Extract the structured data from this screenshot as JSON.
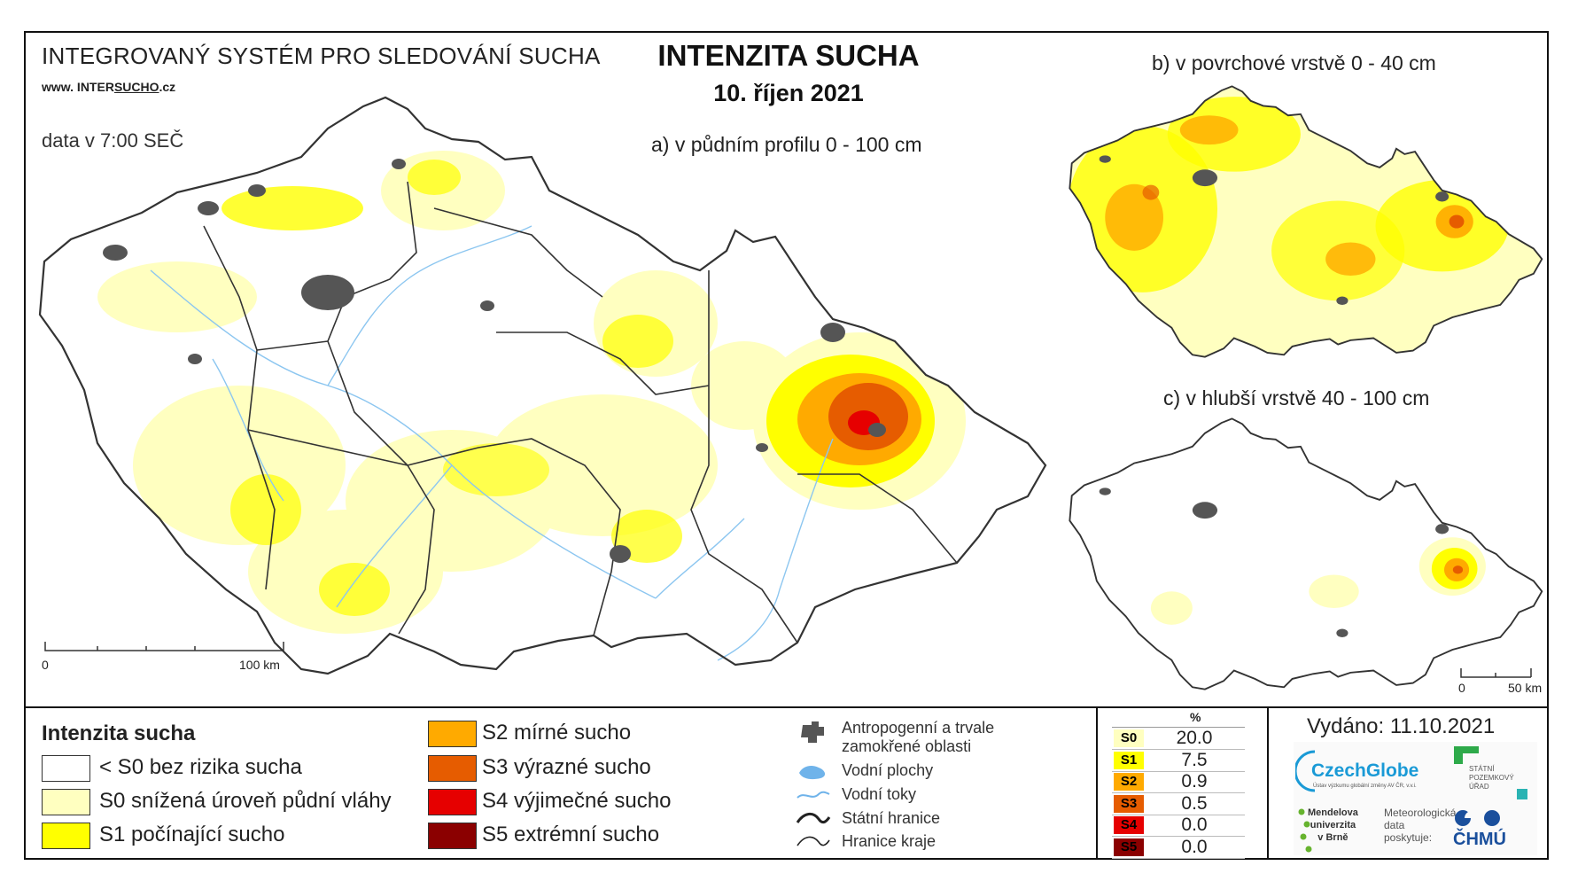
{
  "header": {
    "system_title": "INTEGROVANÝ SYSTÉM PRO SLEDOVÁNÍ SUCHA",
    "website_prefix": "www. INTER",
    "website_underlined": "SUCHO",
    "website_suffix": ".cz",
    "data_time": "data v 7:00 SEČ",
    "main_title": "INTENZITA SUCHA",
    "date": "10. říjen 2021"
  },
  "maps": {
    "a_label": "a) v půdním profilu 0 - 100 cm",
    "b_label": "b) v povrchové vrstvě 0 - 40 cm",
    "c_label": "c) v hlubší vrstvě 40 - 100 cm",
    "scale_main": {
      "zero": "0",
      "end": "100 km"
    },
    "scale_small": {
      "zero": "0",
      "end": "50 km"
    }
  },
  "legend": {
    "title": "Intenzita sucha",
    "classes": [
      {
        "label": "< S0 bez rizika sucha",
        "color": "#ffffff"
      },
      {
        "label": "S0 snížená úroveň půdní vláhy",
        "color": "#ffffc0"
      },
      {
        "label": "S1 počínající sucho",
        "color": "#ffff00"
      },
      {
        "label": "S2 mírné sucho",
        "color": "#ffaa00"
      },
      {
        "label": "S3 výrazné sucho",
        "color": "#e65c00"
      },
      {
        "label": "S4 výjimečné sucho",
        "color": "#e60000"
      },
      {
        "label": "S5 extrémní sucho",
        "color": "#8b0000"
      }
    ],
    "symbols": {
      "anthropogenic_line1": "Antropogenní a trvale",
      "anthropogenic_line2": "zamokřené oblasti",
      "water_bodies": "Vodní plochy",
      "rivers": "Vodní toky",
      "state_border": "Státní hranice",
      "region_border": "Hranice kraje"
    }
  },
  "percent_table": {
    "header": "%",
    "rows": [
      {
        "code": "S0",
        "value": "20.0",
        "color": "#ffffc0",
        "text": "#000"
      },
      {
        "code": "S1",
        "value": "7.5",
        "color": "#ffff00",
        "text": "#000"
      },
      {
        "code": "S2",
        "value": "0.9",
        "color": "#ffaa00",
        "text": "#000"
      },
      {
        "code": "S3",
        "value": "0.5",
        "color": "#e65c00",
        "text": "#000"
      },
      {
        "code": "S4",
        "value": "0.0",
        "color": "#e60000",
        "text": "#000"
      },
      {
        "code": "S5",
        "value": "0.0",
        "color": "#8b0000",
        "text": "#000"
      }
    ]
  },
  "issued": "Vydáno: 11.10.2021",
  "logos": {
    "czechglobe": "CzechGlobe",
    "czechglobe_sub": "Ústav výzkumu globální změny AV ČR, v.v.i.",
    "spu_line1": "STÁTNÍ",
    "spu_line2": "POZEMKOVÝ",
    "spu_line3": "ÚŘAD",
    "mendel_line1": "Mendelova",
    "mendel_line2": "univerzita",
    "mendel_line3": "v Brně",
    "meteo_line1": "Meteorologická",
    "meteo_line2": "data",
    "meteo_line3": "poskytuje:",
    "chmu": "ČHMÚ"
  }
}
